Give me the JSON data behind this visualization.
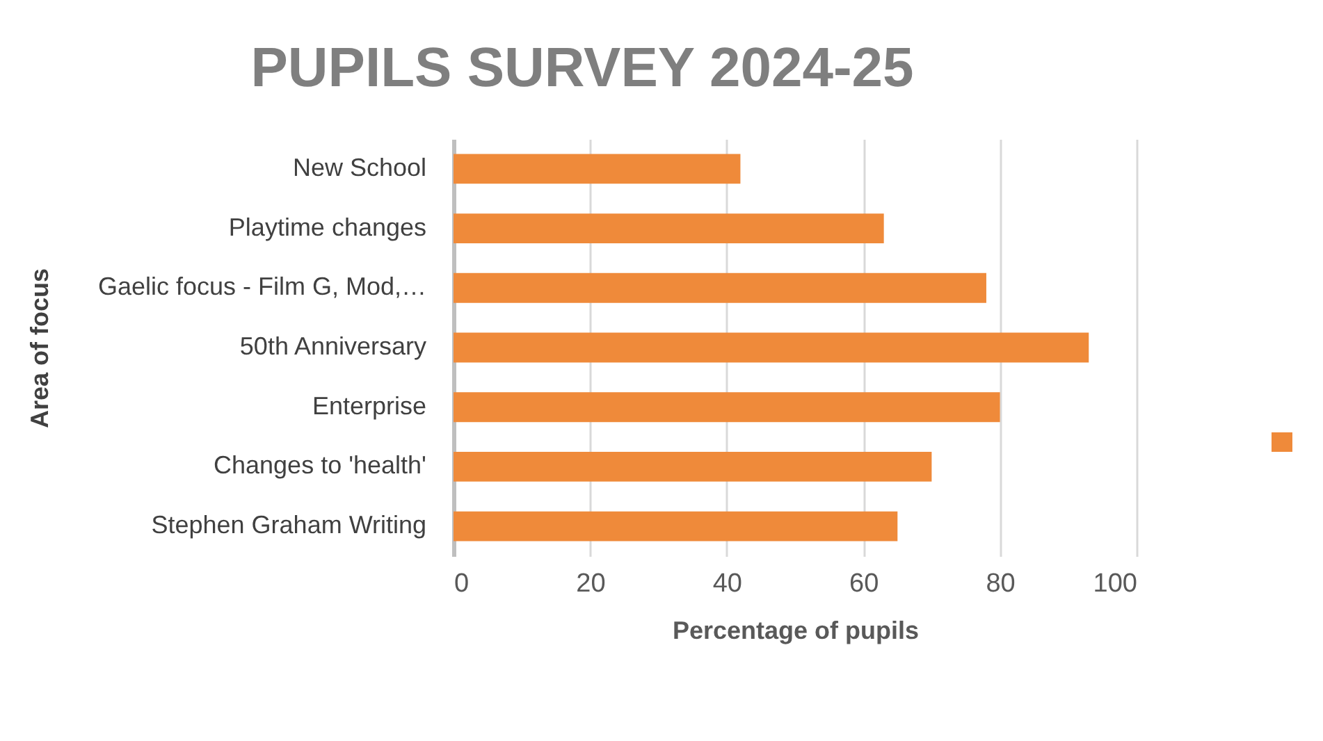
{
  "chart_data": {
    "type": "bar",
    "orientation": "horizontal",
    "title": "PUPILS SURVEY 2024-25",
    "xlabel": "Percentage of pupils",
    "ylabel": "Area of focus",
    "categories": [
      "New School",
      "Playtime changes",
      "Gaelic focus - Film G, Mod,…",
      "50th Anniversary",
      "Enterprise",
      "Changes to 'health'",
      "Stephen Graham Writing"
    ],
    "values": [
      42,
      63,
      78,
      93,
      80,
      70,
      65
    ],
    "color": "#ef8a3a",
    "xlim": [
      0,
      100
    ],
    "xticks": [
      0,
      20,
      40,
      60,
      80,
      100
    ],
    "grid": "x"
  }
}
